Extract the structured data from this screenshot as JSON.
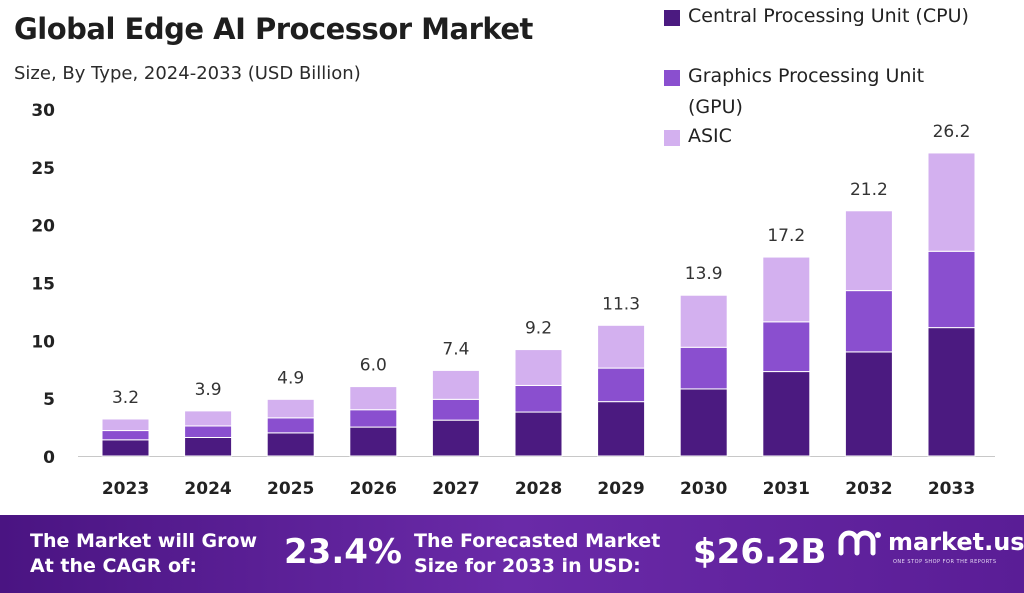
{
  "title": "Global Edge AI Processor Market",
  "subtitle": "Size, By Type, 2024-2033 (USD Billion)",
  "legend": [
    {
      "label": "Central Processing Unit (CPU)",
      "color": "#4b1a80"
    },
    {
      "label": "Graphics Processing Unit (GPU)",
      "color": "#8a4fcf"
    },
    {
      "label": "ASIC",
      "color": "#d3b0ef"
    }
  ],
  "chart_data": {
    "type": "bar",
    "stacked": true,
    "categories": [
      "2023",
      "2024",
      "2025",
      "2026",
      "2027",
      "2028",
      "2029",
      "2030",
      "2031",
      "2032",
      "2033"
    ],
    "series": [
      {
        "name": "Central Processing Unit (CPU)",
        "color": "#4b1a80",
        "values": [
          1.4,
          1.6,
          2.0,
          2.5,
          3.1,
          3.8,
          4.7,
          5.8,
          7.3,
          9.0,
          11.1
        ]
      },
      {
        "name": "Graphics Processing Unit (GPU)",
        "color": "#8a4fcf",
        "values": [
          0.8,
          1.0,
          1.3,
          1.5,
          1.8,
          2.3,
          2.9,
          3.6,
          4.3,
          5.3,
          6.6
        ]
      },
      {
        "name": "ASIC",
        "color": "#d3b0ef",
        "values": [
          1.0,
          1.3,
          1.6,
          2.0,
          2.5,
          3.1,
          3.7,
          4.5,
          5.6,
          6.9,
          8.5
        ]
      }
    ],
    "totals": [
      "3.2",
      "3.9",
      "4.9",
      "6.0",
      "7.4",
      "9.2",
      "11.3",
      "13.9",
      "17.2",
      "21.2",
      "26.2"
    ],
    "yticks": [
      "0",
      "5",
      "10",
      "15",
      "20",
      "25",
      "30"
    ],
    "ylim": [
      0,
      30
    ],
    "grid": false,
    "legend_position": "top-right"
  },
  "footer": {
    "cagr_label_line1": "The Market will Grow",
    "cagr_label_line2": "At the CAGR of:",
    "cagr_value": "23.4%",
    "forecast_label_line1": "The Forecasted Market",
    "forecast_label_line2": "Size for 2033 in USD:",
    "forecast_value": "$26.2B",
    "brand": "market.us",
    "brand_tagline": "ONE STOP SHOP FOR THE REPORTS"
  }
}
